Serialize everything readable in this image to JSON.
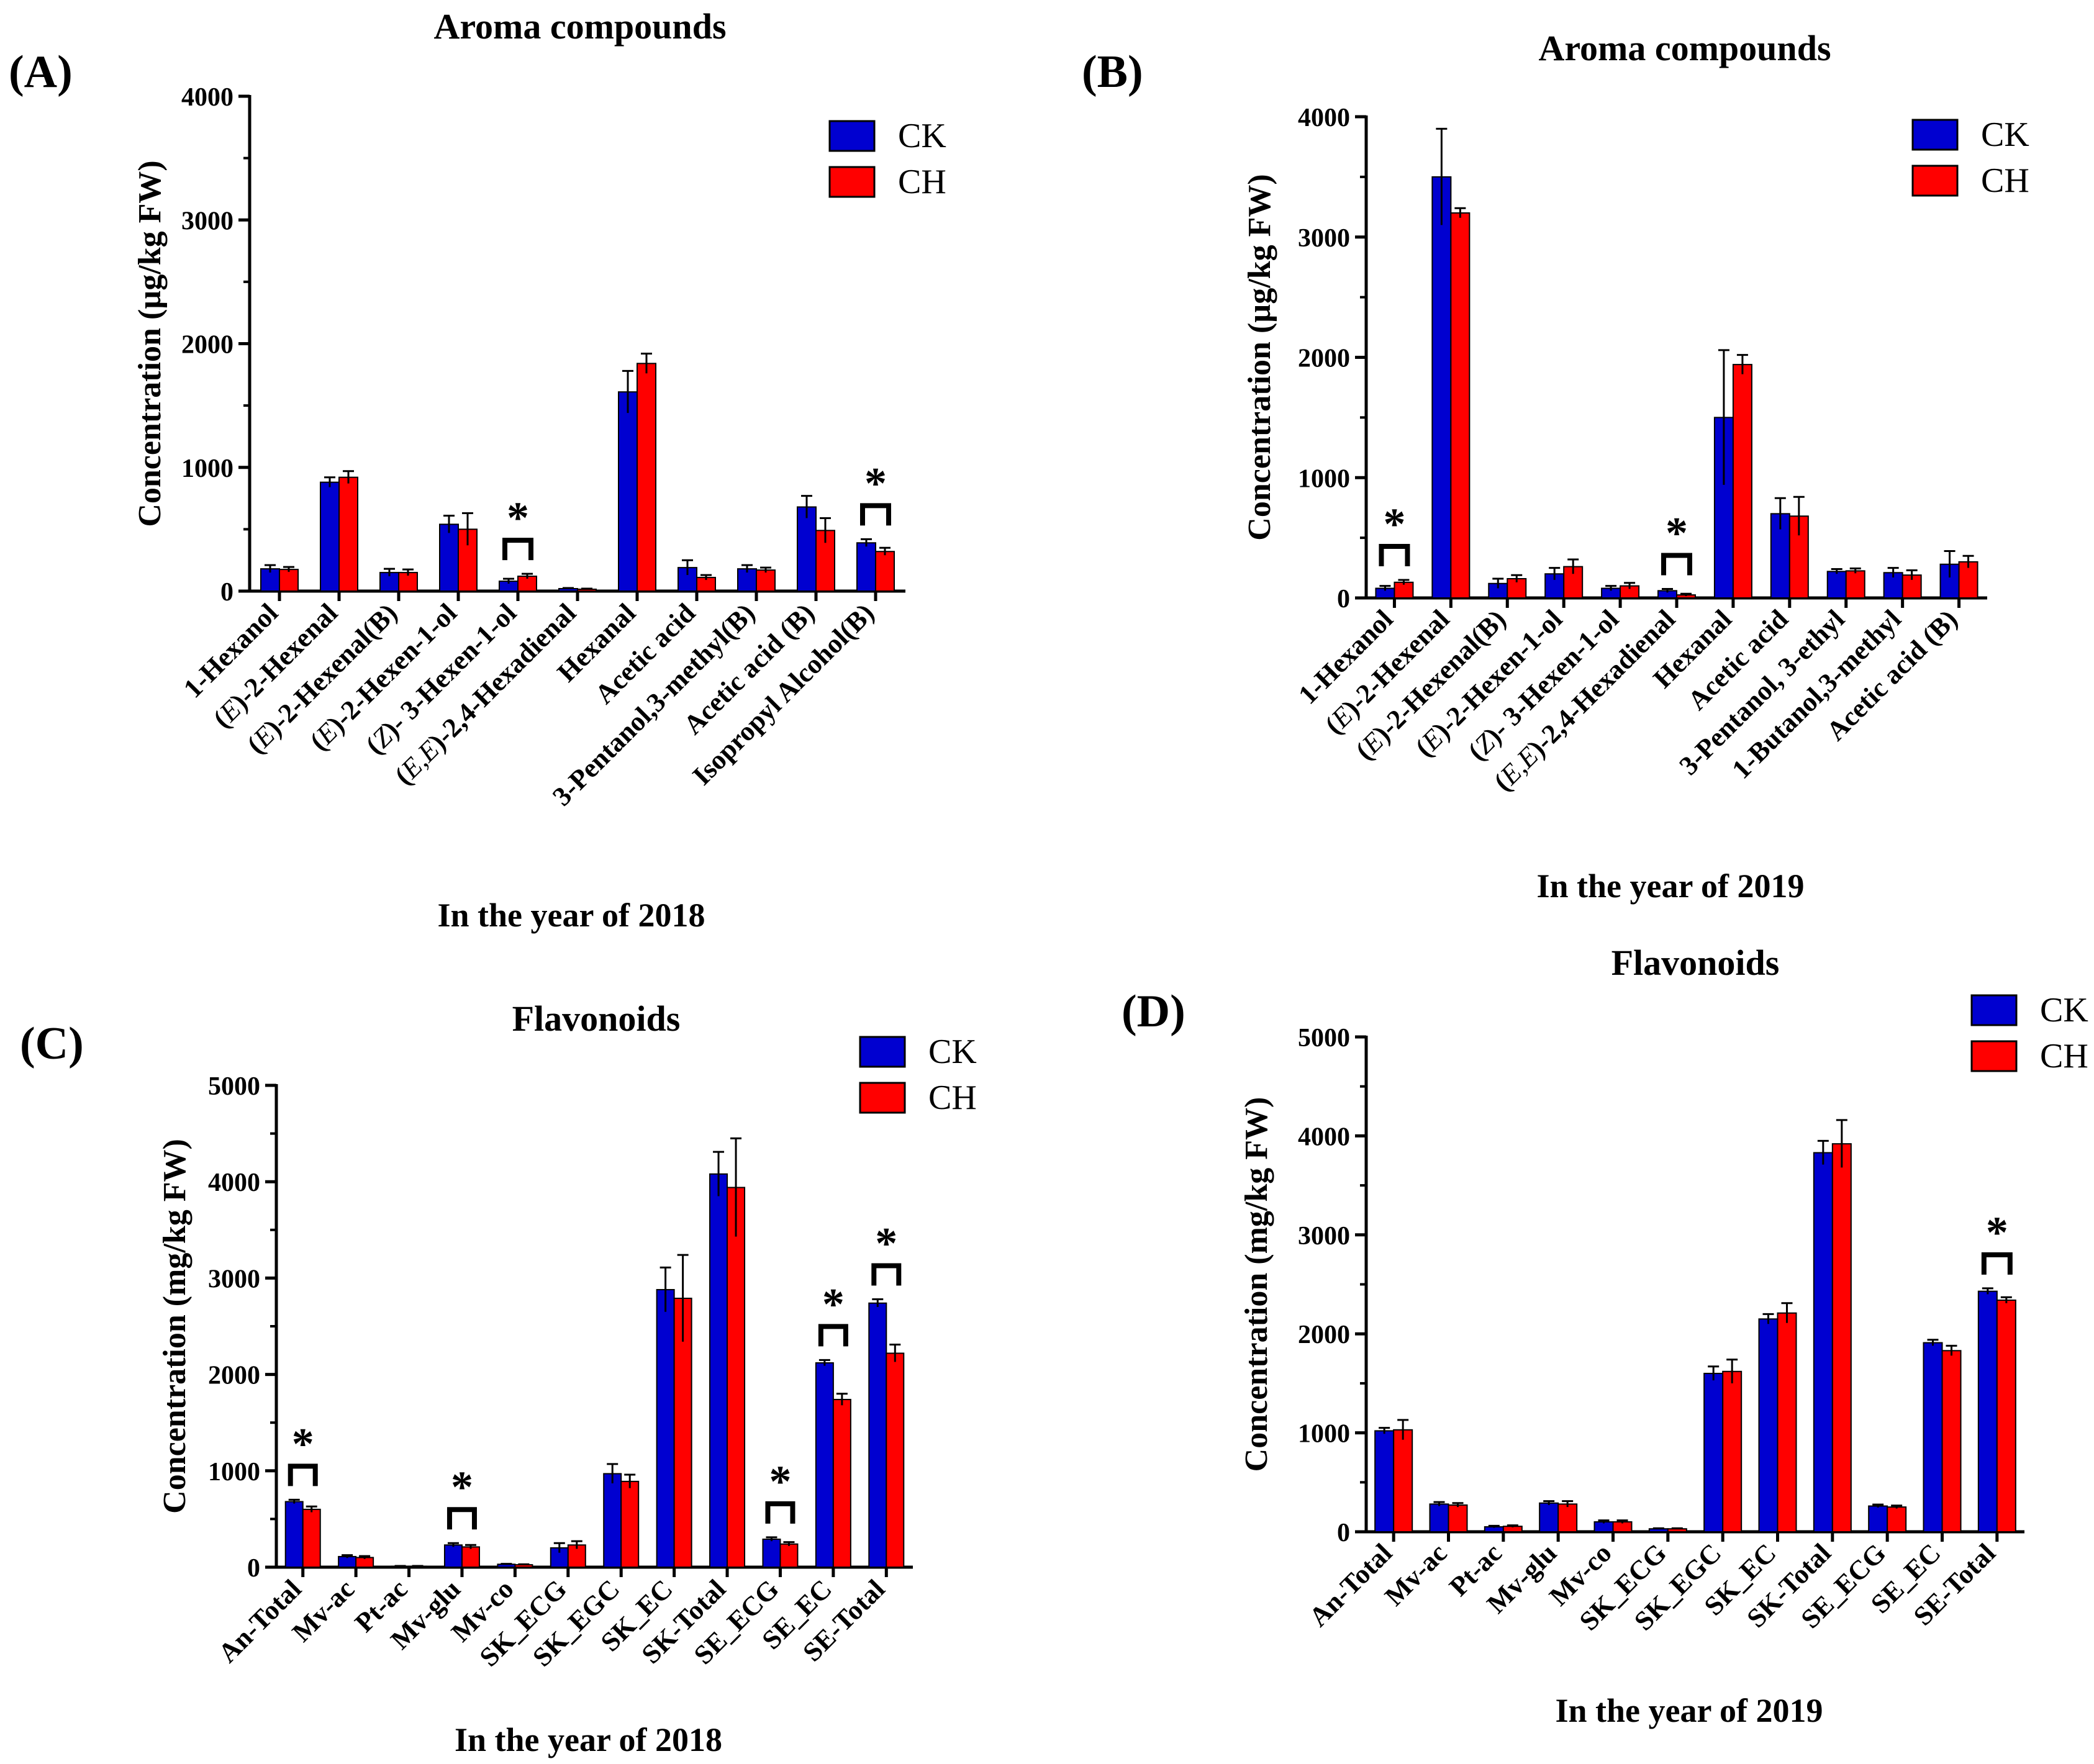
{
  "colors": {
    "ck": "#0000d0",
    "ch": "#ff0000",
    "axis": "#000000"
  },
  "chart_data": [
    {
      "type": "bar",
      "panel": "(A)",
      "title": "Aroma compounds",
      "xlabel": "In the year of 2018",
      "ylabel": "Concentration (µg/kg FW)",
      "ylim": [
        0,
        4000
      ],
      "yticks": [
        "0",
        "1000",
        "2000",
        "3000",
        "4000"
      ],
      "legend": [
        "CK",
        "CH"
      ],
      "legend_position": "top-right",
      "categories": [
        "1-Hexanol",
        "(E)-2-Hexenal",
        "(E)-2-Hexenal(B)",
        "(E)-2-Hexen-1-ol",
        "(Z)- 3-Hexen-1-ol",
        "(E,E)-2,4-Hexadienal",
        "Hexanal",
        "Acetic acid",
        "3-Pentanol,3-methyl(B)",
        "Acetic acid (B)",
        "Isopropyl Alcohol(B)"
      ],
      "series": [
        {
          "name": "CK",
          "values": [
            180,
            880,
            150,
            540,
            80,
            20,
            1610,
            190,
            180,
            680,
            390
          ],
          "errors": [
            30,
            40,
            30,
            70,
            20,
            5,
            170,
            60,
            30,
            90,
            30
          ]
        },
        {
          "name": "CH",
          "values": [
            175,
            920,
            150,
            500,
            120,
            15,
            1840,
            110,
            170,
            490,
            320
          ],
          "errors": [
            20,
            50,
            25,
            130,
            20,
            5,
            80,
            20,
            20,
            100,
            30
          ]
        }
      ],
      "significance": [
        {
          "category": "(Z)- 3-Hexen-1-ol",
          "label": "*"
        },
        {
          "category": "Isopropyl Alcohol(B)",
          "label": "*"
        }
      ]
    },
    {
      "type": "bar",
      "panel": "(B)",
      "title": "Aroma compounds",
      "xlabel": "In the year of 2019",
      "ylabel": "Concentration (µg/kg FW)",
      "ylim": [
        0,
        4000
      ],
      "yticks": [
        "0",
        "1000",
        "2000",
        "3000",
        "4000"
      ],
      "legend": [
        "CK",
        "CH"
      ],
      "legend_position": "top-right",
      "categories": [
        "1-Hexanol",
        "(E)-2-Hexenal",
        "(E)-2-Hexenal(B)",
        "(E)-2-Hexen-1-ol",
        "(Z)- 3-Hexen-1-ol",
        "(E,E)-2,4-Hexadienal",
        "Hexanal",
        "Acetic acid",
        "3-Pentanol, 3-ethyl",
        "1-Butanol,3-methyl",
        "Acetic acid (B)"
      ],
      "series": [
        {
          "name": "CK",
          "values": [
            80,
            3500,
            120,
            200,
            80,
            60,
            1500,
            700,
            220,
            210,
            280
          ],
          "errors": [
            20,
            400,
            40,
            50,
            20,
            15,
            560,
            130,
            20,
            40,
            110
          ]
        },
        {
          "name": "CH",
          "values": [
            130,
            3200,
            160,
            260,
            100,
            25,
            1940,
            680,
            225,
            190,
            300
          ],
          "errors": [
            20,
            40,
            30,
            60,
            25,
            10,
            80,
            160,
            20,
            40,
            50
          ]
        }
      ],
      "significance": [
        {
          "category": "1-Hexanol",
          "label": "*"
        },
        {
          "category": "(E,E)-2,4-Hexadienal",
          "label": "*"
        }
      ]
    },
    {
      "type": "bar",
      "panel": "(C)",
      "title": "Flavonoids",
      "xlabel": "In the year of 2018",
      "ylabel": "Concentration (mg/kg FW)",
      "ylim": [
        0,
        5000
      ],
      "yticks": [
        "0",
        "1000",
        "2000",
        "3000",
        "4000",
        "5000"
      ],
      "legend": [
        "CK",
        "CH"
      ],
      "legend_position": "top-right",
      "categories": [
        "An-Total",
        "Mv-ac",
        "Pt-ac",
        "Mv-glu",
        "Mv-co",
        "SK_ECG",
        "SK_EGC",
        "SK_EC",
        "SK-Total",
        "SE_ECG",
        "SE_EC",
        "SE-Total"
      ],
      "series": [
        {
          "name": "CK",
          "values": [
            680,
            110,
            10,
            230,
            30,
            200,
            970,
            2880,
            4080,
            290,
            2120,
            2740
          ],
          "errors": [
            20,
            15,
            3,
            20,
            5,
            50,
            100,
            230,
            230,
            20,
            30,
            40
          ]
        },
        {
          "name": "CH",
          "values": [
            600,
            100,
            10,
            210,
            25,
            230,
            890,
            2790,
            3940,
            240,
            1740,
            2220
          ],
          "errors": [
            30,
            15,
            3,
            20,
            5,
            40,
            70,
            450,
            510,
            20,
            60,
            90
          ]
        }
      ],
      "significance": [
        {
          "category": "An-Total",
          "label": "*"
        },
        {
          "category": "Mv-glu",
          "label": "*"
        },
        {
          "category": "SE_ECG",
          "label": "*"
        },
        {
          "category": "SE_EC",
          "label": "*"
        },
        {
          "category": "SE-Total",
          "label": "*"
        }
      ]
    },
    {
      "type": "bar",
      "panel": "(D)",
      "title": "Flavonoids",
      "xlabel": "In the year of 2019",
      "ylabel": "Concentration (mg/kg FW)",
      "ylim": [
        0,
        5000
      ],
      "yticks": [
        "0",
        "1000",
        "2000",
        "3000",
        "4000",
        "5000"
      ],
      "legend": [
        "CK",
        "CH"
      ],
      "legend_position": "top-right",
      "categories": [
        "An-Total",
        "Mv-ac",
        "Pt-ac",
        "Mv-glu",
        "Mv-co",
        "SK_ECG",
        "SK_EGC",
        "SK_EC",
        "SK-Total",
        "SE_ECG",
        "SE_EC",
        "SE-Total"
      ],
      "series": [
        {
          "name": "CK",
          "values": [
            1020,
            280,
            50,
            290,
            100,
            30,
            1600,
            2150,
            3830,
            260,
            1910,
            2430
          ],
          "errors": [
            30,
            20,
            10,
            20,
            15,
            5,
            70,
            50,
            120,
            15,
            30,
            30
          ]
        },
        {
          "name": "CH",
          "values": [
            1030,
            270,
            55,
            280,
            100,
            30,
            1620,
            2210,
            3920,
            250,
            1830,
            2340
          ],
          "errors": [
            100,
            20,
            10,
            30,
            15,
            5,
            120,
            100,
            240,
            15,
            50,
            30
          ]
        }
      ],
      "significance": [
        {
          "category": "SE-Total",
          "label": "*"
        }
      ]
    }
  ]
}
